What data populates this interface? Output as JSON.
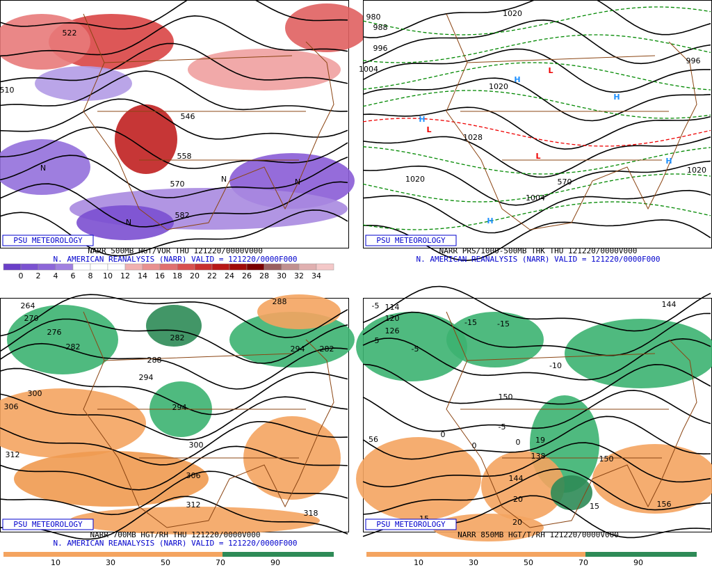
{
  "panels": [
    {
      "badge": "PSU METEOROLOGY",
      "caption": [
        "NARR 500MB HGT/VOR THU 121220/0000V000",
        "N. AMERICAN REANALYSIS (NARR) VALID = 121220/0000F000"
      ],
      "colorbar_labels": [
        "0",
        "2",
        "4",
        "6",
        "8",
        "10",
        "12",
        "14",
        "16",
        "18",
        "20",
        "22",
        "24",
        "26",
        "28",
        "30",
        "32",
        "34"
      ],
      "map_labels": [
        "522",
        "510",
        "546",
        "558",
        "570",
        "582",
        "N",
        "N",
        "N",
        "N"
      ]
    },
    {
      "badge": "PSU METEOROLOGY",
      "caption": [
        "NARR PRS/1000-500MB THK THU 121220/0000V000",
        "N. AMERICAN REANALYSIS (NARR) VALID = 121220/0000F000"
      ],
      "colorbar_labels": [],
      "map_labels": [
        "980",
        "988",
        "996",
        "1004",
        "1020",
        "1028",
        "1020",
        "1004",
        "1020",
        "1020",
        "996",
        "570",
        "H",
        "H",
        "H",
        "H",
        "L",
        "L",
        "L",
        "H"
      ]
    },
    {
      "badge": "PSU METEOROLOGY",
      "caption": [
        "NARR 700MB HGT/RH THU 121220/0000V000",
        "N. AMERICAN REANALYSIS (NARR) VALID = 121220/0000F000"
      ],
      "colorbar_labels": [
        "10",
        "30",
        "50",
        "70",
        "90"
      ],
      "map_labels": [
        "264",
        "270",
        "276",
        "282",
        "294",
        "300",
        "306",
        "312",
        "282",
        "288",
        "294",
        "300",
        "306",
        "312",
        "318",
        "288",
        "294",
        "282"
      ]
    },
    {
      "badge": "PSU METEOROLOGY",
      "caption": [
        "NARR 850MB HGT/T/RH 121220/0000V000"
      ],
      "colorbar_labels": [
        "10",
        "30",
        "50",
        "70",
        "90"
      ],
      "map_labels": [
        "-5",
        "114",
        "120",
        "126",
        "-5",
        "-5",
        "-15",
        "-15",
        "-10",
        "-5",
        "150",
        "138",
        "144",
        "0",
        "0",
        "0",
        "19",
        "20",
        "20",
        "15",
        "15",
        "56",
        "150",
        "156",
        "144"
      ]
    }
  ]
}
